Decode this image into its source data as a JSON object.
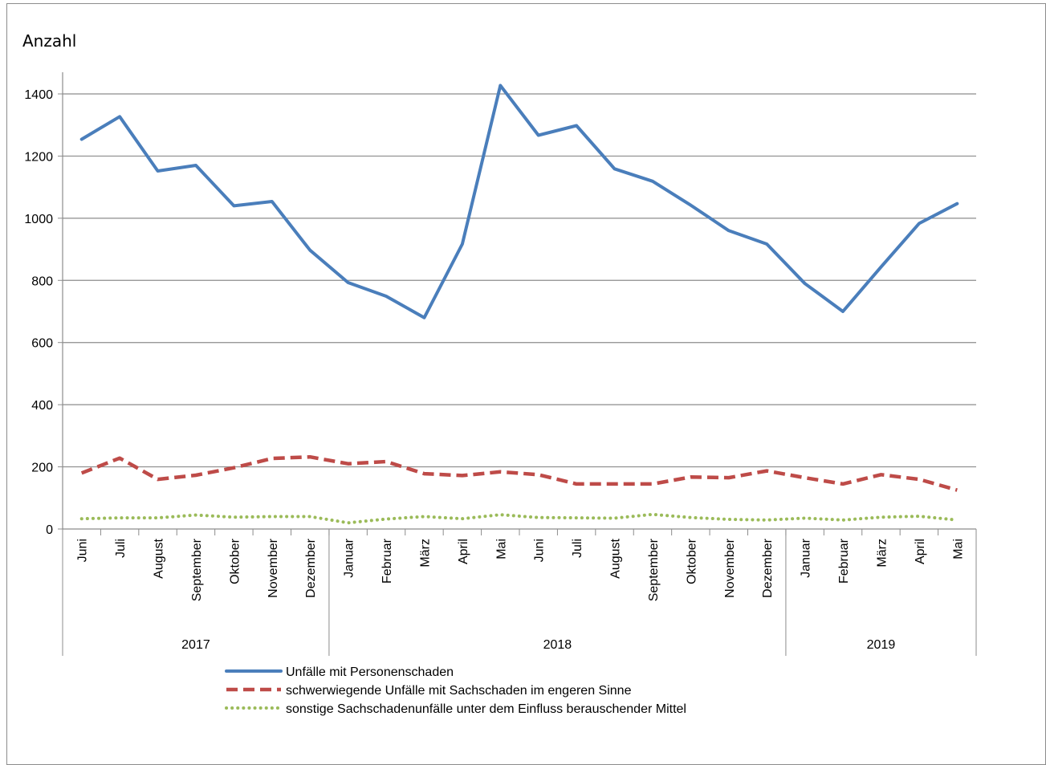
{
  "chart_data": {
    "type": "line",
    "ylabel": "Anzahl",
    "ylim": [
      0,
      1400
    ],
    "yticks": [
      0,
      200,
      400,
      600,
      800,
      1000,
      1200,
      1400
    ],
    "grid": true,
    "legend_position": "bottom",
    "categories": [
      "Juni",
      "Juli",
      "August",
      "September",
      "Oktober",
      "November",
      "Dezember",
      "Januar",
      "Februar",
      "März",
      "April",
      "Mai",
      "Juni",
      "Juli",
      "August",
      "September",
      "Oktober",
      "November",
      "Dezember",
      "Januar",
      "Februar",
      "März",
      "April",
      "Mai"
    ],
    "year_groups": [
      {
        "label": "2017",
        "start": 0,
        "end": 6
      },
      {
        "label": "2018",
        "start": 7,
        "end": 18
      },
      {
        "label": "2019",
        "start": 19,
        "end": 23
      }
    ],
    "series": [
      {
        "name": "Unfälle mit Personenschaden",
        "color": "#4a7ebb",
        "style": "solid",
        "values": [
          1254,
          1327,
          1152,
          1170,
          1040,
          1054,
          897,
          793,
          749,
          680,
          917,
          1427,
          1267,
          1298,
          1159,
          1119,
          1042,
          960,
          917,
          790,
          700,
          843,
          983,
          1047
        ]
      },
      {
        "name": "schwerwiegende Unfälle mit Sachschaden im engeren Sinne",
        "color": "#be4b48",
        "style": "dashed",
        "values": [
          180,
          228,
          160,
          173,
          197,
          227,
          232,
          210,
          217,
          178,
          172,
          184,
          175,
          145,
          145,
          145,
          167,
          165,
          187,
          165,
          145,
          175,
          160,
          125
        ]
      },
      {
        "name": "sonstige Sachschadenunfälle unter dem Einfluss berauschender Mittel",
        "color": "#9bbb59",
        "style": "dotted",
        "values": [
          33,
          36,
          36,
          45,
          38,
          40,
          40,
          20,
          32,
          40,
          33,
          46,
          37,
          36,
          35,
          47,
          37,
          31,
          29,
          35,
          29,
          38,
          41,
          29
        ]
      }
    ]
  }
}
